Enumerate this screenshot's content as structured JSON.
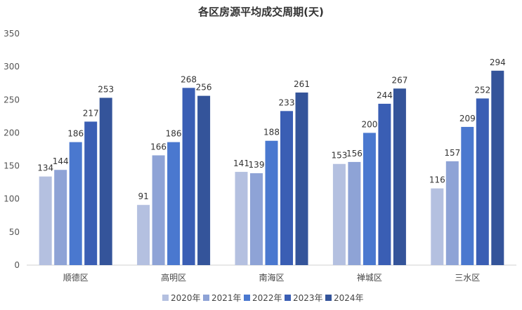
{
  "chart_data": {
    "type": "bar",
    "title": "各区房源平均成交周期(天)",
    "xlabel": "",
    "ylabel": "",
    "ylim": [
      0,
      350
    ],
    "yticks": [
      0,
      50,
      100,
      150,
      200,
      250,
      300,
      350
    ],
    "grid": false,
    "legend_position": "bottom",
    "categories": [
      "顺德区",
      "高明区",
      "南海区",
      "禅城区",
      "三水区"
    ],
    "series": [
      {
        "name": "2020年",
        "color": "#b4c0e0",
        "values": [
          134,
          91,
          141,
          153,
          116
        ]
      },
      {
        "name": "2021年",
        "color": "#8ea3d6",
        "values": [
          144,
          166,
          139,
          156,
          157
        ]
      },
      {
        "name": "2022年",
        "color": "#4a78cf",
        "values": [
          186,
          186,
          188,
          200,
          209
        ]
      },
      {
        "name": "2023年",
        "color": "#3a5eb4",
        "values": [
          217,
          268,
          233,
          244,
          252
        ]
      },
      {
        "name": "2024年",
        "color": "#34549a",
        "values": [
          253,
          256,
          261,
          267,
          294
        ]
      }
    ]
  }
}
